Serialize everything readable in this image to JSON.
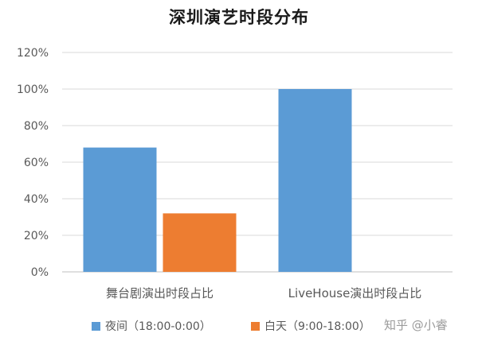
{
  "chart_data": {
    "type": "bar",
    "title": "深圳演艺时段分布",
    "categories": [
      "舞台剧演出时段占比",
      "LiveHouse演出时段占比"
    ],
    "series": [
      {
        "name": "夜间（18:00-0:00）",
        "color": "#5b9bd5",
        "values": [
          0.68,
          1.0
        ]
      },
      {
        "name": "白天（9:00-18:00）",
        "color": "#ed7d31",
        "values": [
          0.32,
          0.0
        ]
      }
    ],
    "ylim": [
      0,
      1.2
    ],
    "yticks": [
      0,
      0.2,
      0.4,
      0.6,
      0.8,
      1.0,
      1.2
    ],
    "ytick_labels": [
      "0%",
      "20%",
      "40%",
      "60%",
      "80%",
      "100%",
      "120%"
    ],
    "xlabel": "",
    "ylabel": "",
    "grid": true,
    "legend_position": "bottom"
  },
  "watermark": "知乎 @小睿"
}
